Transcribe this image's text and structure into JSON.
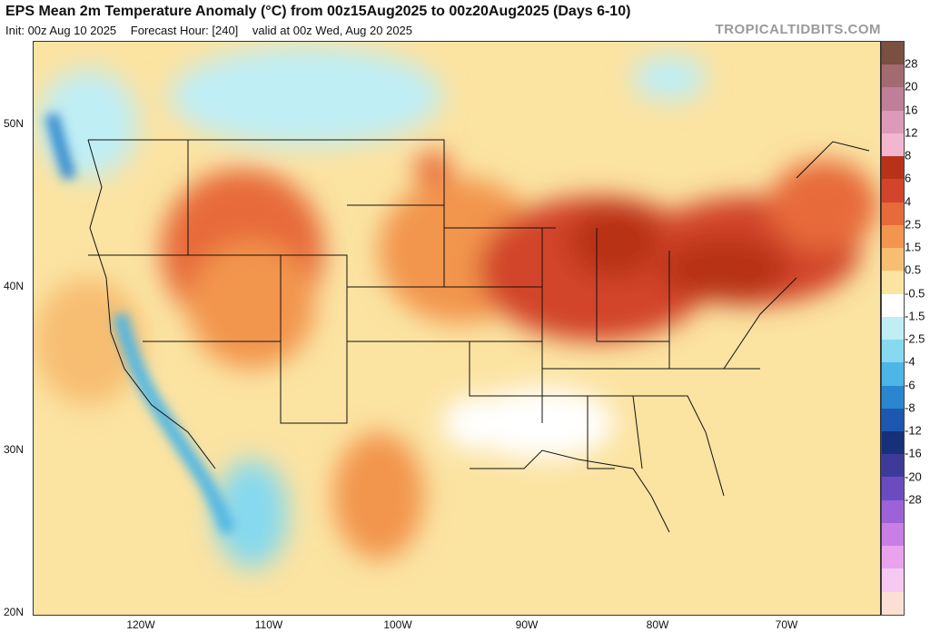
{
  "header": {
    "title": "EPS Mean 2m Temperature Anomaly (°C) from 00z15Aug2025 to 00z20Aug2025 (Days 6-10)",
    "init": "Init: 00z Aug 10 2025",
    "forecast_hour": "Forecast Hour: [240]",
    "valid": "valid at 00z Wed, Aug 20 2025"
  },
  "credit": "TROPICALTIDBITS.COM",
  "lat_labels": [
    "50N",
    "40N",
    "30N",
    "20N"
  ],
  "lon_labels": [
    "120W",
    "110W",
    "100W",
    "90W",
    "80W",
    "70W"
  ],
  "colorbar": {
    "labels": [
      "28",
      "20",
      "16",
      "12",
      "8",
      "6",
      "4",
      "2.5",
      "1.5",
      "0.5",
      "-0.5",
      "-1.5",
      "-2.5",
      "-4",
      "-6",
      "-8",
      "-12",
      "-16",
      "-20",
      "-28"
    ],
    "colors": [
      "#7a5040",
      "#a46a72",
      "#c07f98",
      "#dc9ab8",
      "#f2b6cf",
      "#b83218",
      "#d2452a",
      "#e76b3a",
      "#f2954e",
      "#f7be72",
      "#fbe3a2",
      "#ffffff",
      "#bfeef5",
      "#86d9ee",
      "#4cb6e6",
      "#2a86cf",
      "#1d57b0",
      "#16307a",
      "#3d3a9a",
      "#6a4cc0",
      "#9d62d8",
      "#c87ee4",
      "#e9a2ee",
      "#f6c8f2",
      "#fbdfd5"
    ]
  }
}
